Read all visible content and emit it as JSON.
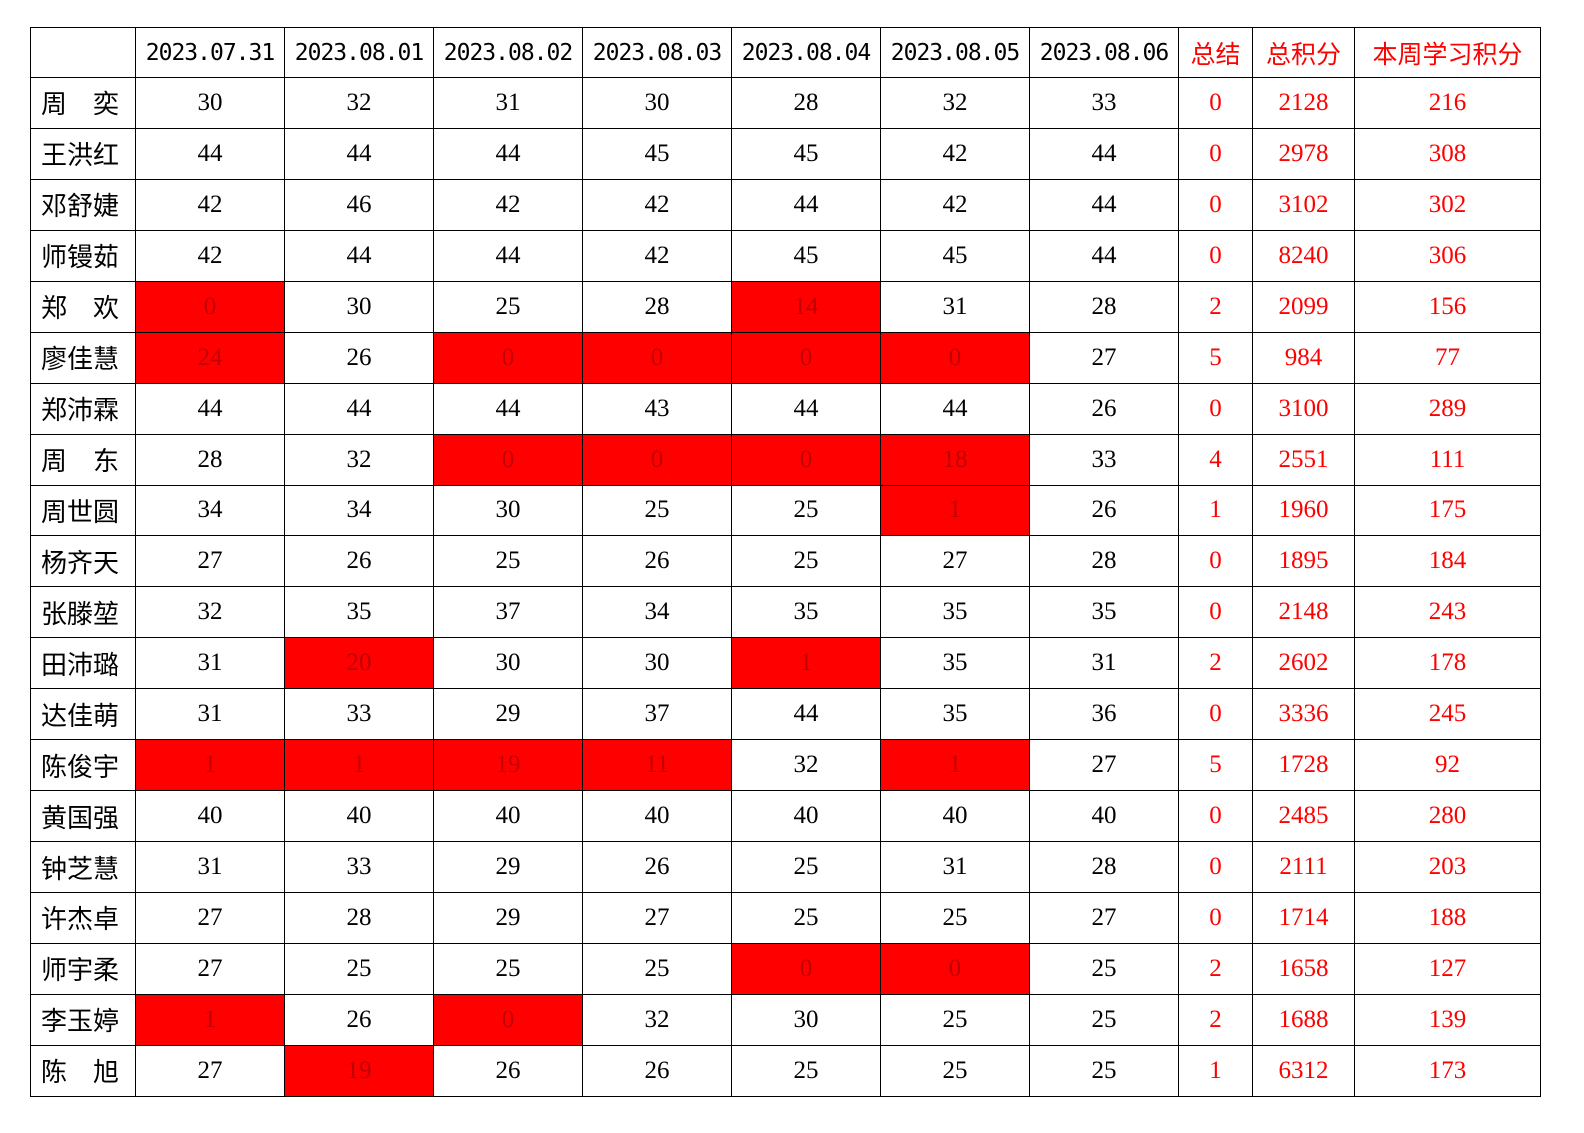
{
  "table": {
    "highlight_color": "#ff0000",
    "highlight_text_color": "#c00000",
    "columns": [
      {
        "label": "2023.07.31"
      },
      {
        "label": "2023.08.01"
      },
      {
        "label": "2023.08.02"
      },
      {
        "label": "2023.08.03"
      },
      {
        "label": "2023.08.04"
      },
      {
        "label": "2023.08.05"
      },
      {
        "label": "2023.08.06"
      },
      {
        "label": "总结",
        "color": "#ff0000"
      },
      {
        "label": "总积分",
        "color": "#ff0000"
      },
      {
        "label": "本周学习积分",
        "color": "#ff0000"
      }
    ],
    "rows": [
      {
        "name": "周　奕",
        "cells": [
          30,
          32,
          31,
          30,
          28,
          32,
          33,
          0,
          2128,
          216
        ],
        "highlight": [
          false,
          false,
          false,
          false,
          false,
          false,
          false
        ]
      },
      {
        "name": "王洪红",
        "cells": [
          44,
          44,
          44,
          45,
          45,
          42,
          44,
          0,
          2978,
          308
        ],
        "highlight": [
          false,
          false,
          false,
          false,
          false,
          false,
          false
        ]
      },
      {
        "name": "邓舒婕",
        "cells": [
          42,
          46,
          42,
          42,
          44,
          42,
          44,
          0,
          3102,
          302
        ],
        "highlight": [
          false,
          false,
          false,
          false,
          false,
          false,
          false
        ]
      },
      {
        "name": "师镘茹",
        "cells": [
          42,
          44,
          44,
          42,
          45,
          45,
          44,
          0,
          8240,
          306
        ],
        "highlight": [
          false,
          false,
          false,
          false,
          false,
          false,
          false
        ]
      },
      {
        "name": "郑　欢",
        "cells": [
          0,
          30,
          25,
          28,
          14,
          31,
          28,
          2,
          2099,
          156
        ],
        "highlight": [
          true,
          false,
          false,
          false,
          true,
          false,
          false
        ]
      },
      {
        "name": "廖佳慧",
        "cells": [
          24,
          26,
          0,
          0,
          0,
          0,
          27,
          5,
          984,
          77
        ],
        "highlight": [
          true,
          false,
          true,
          true,
          true,
          true,
          false
        ]
      },
      {
        "name": "郑沛霖",
        "cells": [
          44,
          44,
          44,
          43,
          44,
          44,
          26,
          0,
          3100,
          289
        ],
        "highlight": [
          false,
          false,
          false,
          false,
          false,
          false,
          false
        ]
      },
      {
        "name": "周　东",
        "cells": [
          28,
          32,
          0,
          0,
          0,
          18,
          33,
          4,
          2551,
          111
        ],
        "highlight": [
          false,
          false,
          true,
          true,
          true,
          true,
          false
        ]
      },
      {
        "name": "周世圆",
        "cells": [
          34,
          34,
          30,
          25,
          25,
          1,
          26,
          1,
          1960,
          175
        ],
        "highlight": [
          false,
          false,
          false,
          false,
          false,
          true,
          false
        ]
      },
      {
        "name": "杨齐天",
        "cells": [
          27,
          26,
          25,
          26,
          25,
          27,
          28,
          0,
          1895,
          184
        ],
        "highlight": [
          false,
          false,
          false,
          false,
          false,
          false,
          false
        ]
      },
      {
        "name": "张滕堃",
        "cells": [
          32,
          35,
          37,
          34,
          35,
          35,
          35,
          0,
          2148,
          243
        ],
        "highlight": [
          false,
          false,
          false,
          false,
          false,
          false,
          false
        ]
      },
      {
        "name": "田沛璐",
        "cells": [
          31,
          20,
          30,
          30,
          1,
          35,
          31,
          2,
          2602,
          178
        ],
        "highlight": [
          false,
          true,
          false,
          false,
          true,
          false,
          false
        ]
      },
      {
        "name": "达佳萌",
        "cells": [
          31,
          33,
          29,
          37,
          44,
          35,
          36,
          0,
          3336,
          245
        ],
        "highlight": [
          false,
          false,
          false,
          false,
          false,
          false,
          false
        ]
      },
      {
        "name": "陈俊宇",
        "cells": [
          1,
          1,
          19,
          11,
          32,
          1,
          27,
          5,
          1728,
          92
        ],
        "highlight": [
          true,
          true,
          true,
          true,
          false,
          true,
          false
        ]
      },
      {
        "name": "黄国强",
        "cells": [
          40,
          40,
          40,
          40,
          40,
          40,
          40,
          0,
          2485,
          280
        ],
        "highlight": [
          false,
          false,
          false,
          false,
          false,
          false,
          false
        ]
      },
      {
        "name": "钟芝慧",
        "cells": [
          31,
          33,
          29,
          26,
          25,
          31,
          28,
          0,
          2111,
          203
        ],
        "highlight": [
          false,
          false,
          false,
          false,
          false,
          false,
          false
        ]
      },
      {
        "name": "许杰卓",
        "cells": [
          27,
          28,
          29,
          27,
          25,
          25,
          27,
          0,
          1714,
          188
        ],
        "highlight": [
          false,
          false,
          false,
          false,
          false,
          false,
          false
        ]
      },
      {
        "name": "师宇柔",
        "cells": [
          27,
          25,
          25,
          25,
          0,
          0,
          25,
          2,
          1658,
          127
        ],
        "highlight": [
          false,
          false,
          false,
          false,
          true,
          true,
          false
        ]
      },
      {
        "name": "李玉婷",
        "cells": [
          1,
          26,
          0,
          32,
          30,
          25,
          25,
          2,
          1688,
          139
        ],
        "highlight": [
          true,
          false,
          true,
          false,
          false,
          false,
          false
        ]
      },
      {
        "name": "陈　旭",
        "cells": [
          27,
          19,
          26,
          26,
          25,
          25,
          25,
          1,
          6312,
          173
        ],
        "highlight": [
          false,
          true,
          false,
          false,
          false,
          false,
          false
        ]
      }
    ]
  }
}
